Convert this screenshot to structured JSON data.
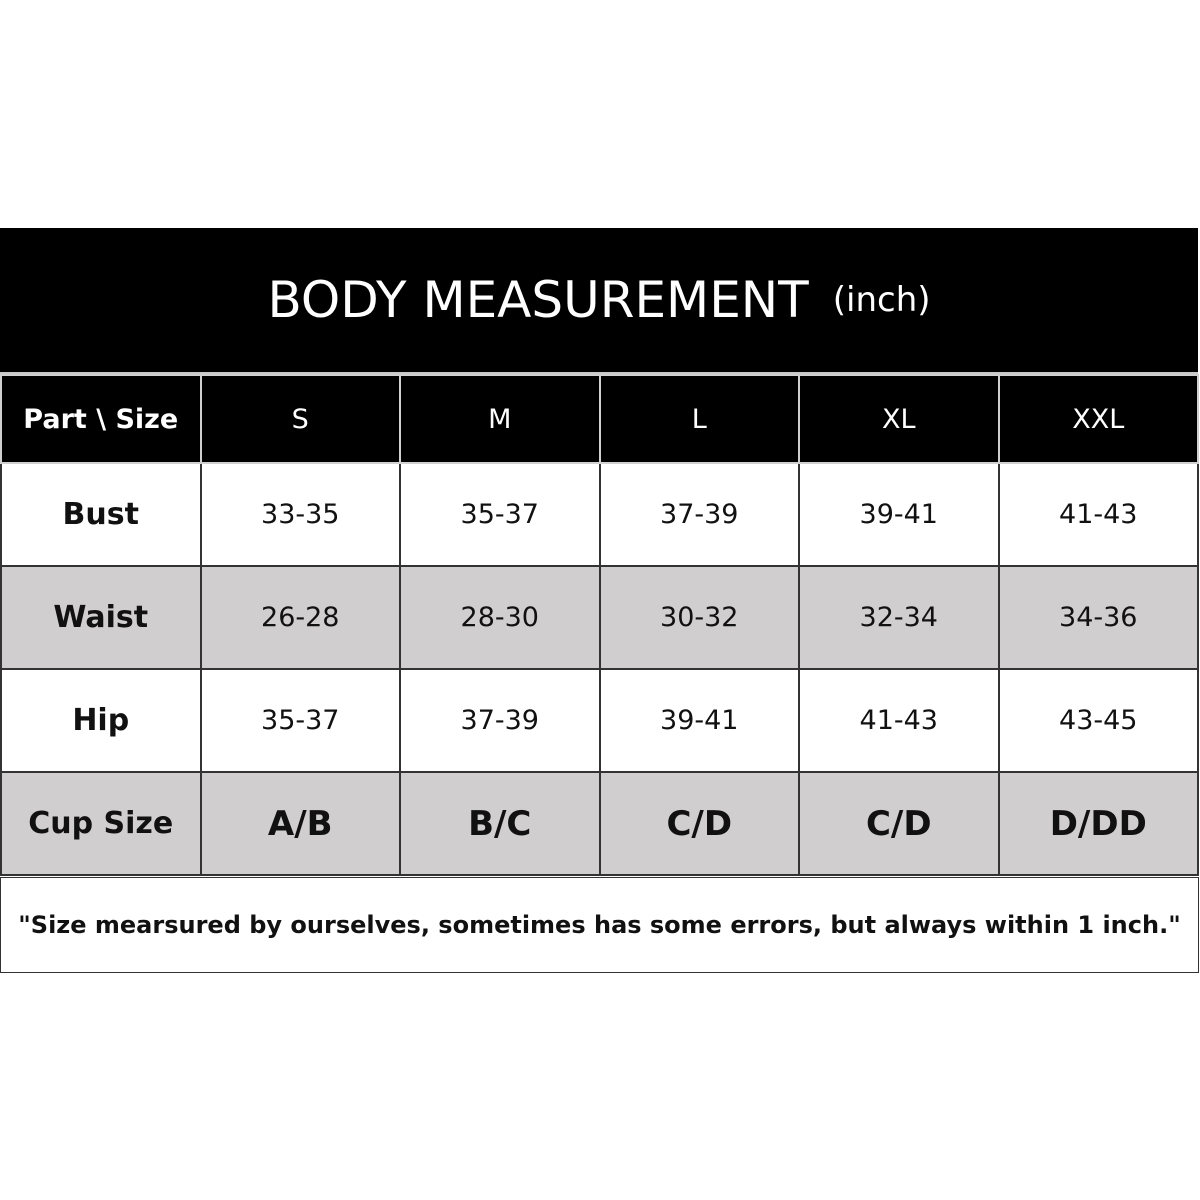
{
  "title": {
    "main": "BODY MEASUREMENT",
    "unit": "(inch)"
  },
  "table": {
    "corner": "Part  \\ Size",
    "sizes": [
      "S",
      "M",
      "L",
      "XL",
      "XXL"
    ],
    "rows": [
      {
        "label": "Bust",
        "values": [
          "33-35",
          "35-37",
          "37-39",
          "39-41",
          "41-43"
        ]
      },
      {
        "label": "Waist",
        "values": [
          "26-28",
          "28-30",
          "30-32",
          "32-34",
          "34-36"
        ]
      },
      {
        "label": "Hip",
        "values": [
          "35-37",
          "37-39",
          "39-41",
          "41-43",
          "43-45"
        ]
      },
      {
        "label": "Cup Size",
        "values": [
          "A/B",
          "B/C",
          "C/D",
          "C/D",
          "D/DD"
        ]
      }
    ]
  },
  "note": "\"Size mearsured by ourselves, sometimes has some errors, but always within 1 inch.\"",
  "colors": {
    "header": "#000000",
    "alt_row": "#d0cece"
  }
}
